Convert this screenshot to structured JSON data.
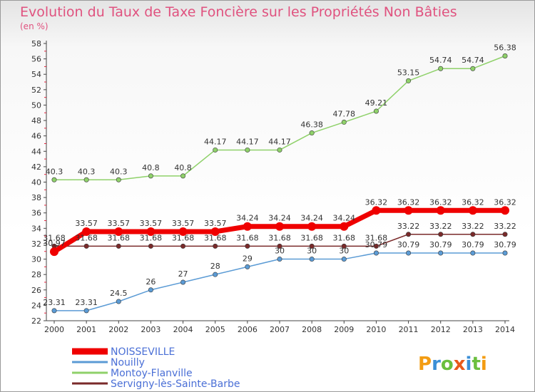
{
  "header": {
    "title": "Evolution du Taux de Taxe Foncière sur les Propriétés Non Bâties",
    "unit": "(en %)"
  },
  "logo": {
    "text": "Proxiti"
  },
  "chart_data": {
    "type": "line",
    "title": "Evolution du Taux de Taxe Foncière sur les Propriétés Non Bâties",
    "ylabel": "(en %)",
    "xlabel": "",
    "x": [
      "2000",
      "2001",
      "2002",
      "2003",
      "2004",
      "2005",
      "2006",
      "2007",
      "2008",
      "2009",
      "2010",
      "2011",
      "2012",
      "2013",
      "2014"
    ],
    "ylim": [
      22,
      58
    ],
    "yticks": [
      22,
      24,
      26,
      28,
      30,
      32,
      34,
      36,
      38,
      40,
      42,
      44,
      46,
      48,
      50,
      52,
      54,
      56,
      58
    ],
    "grid": false,
    "legend": "bottom-left",
    "series": [
      {
        "name": "NOISSEVILLE",
        "color": "#ef0000",
        "width": 7,
        "marker": 6,
        "values": [
          30.97,
          33.57,
          33.57,
          33.57,
          33.57,
          33.57,
          34.24,
          34.24,
          34.24,
          34.24,
          36.32,
          36.32,
          36.32,
          36.32,
          36.32
        ],
        "labels": [
          "30.97",
          "33.57",
          "33.57",
          "33.57",
          "33.57",
          "33.57",
          "34.24",
          "34.24",
          "34.24",
          "34.24",
          "36.32",
          "36.32",
          "36.32",
          "36.32",
          "36.32"
        ]
      },
      {
        "name": "Nouilly",
        "color": "#5b9bd5",
        "width": 1.5,
        "marker": 3.2,
        "values": [
          23.31,
          23.31,
          24.5,
          26,
          27,
          28,
          29,
          30,
          30,
          30,
          30.79,
          30.79,
          30.79,
          30.79,
          30.79
        ],
        "labels": [
          "23.31",
          "23.31",
          "24.5",
          "26",
          "27",
          "28",
          "29",
          "30",
          "30",
          "30",
          "30.79",
          "30.79",
          "30.79",
          "30.79",
          "30.79"
        ]
      },
      {
        "name": "Montoy-Flanville",
        "color": "#8fd16a",
        "width": 1.5,
        "marker": 3.2,
        "values": [
          40.3,
          40.3,
          40.3,
          40.8,
          40.8,
          44.17,
          44.17,
          44.17,
          46.38,
          47.78,
          49.21,
          53.15,
          54.74,
          54.74,
          56.38
        ],
        "labels": [
          "40.3",
          "40.3",
          "40.3",
          "40.8",
          "40.8",
          "44.17",
          "44.17",
          "44.17",
          "46.38",
          "47.78",
          "49.21",
          "53.15",
          "54.74",
          "54.74",
          "56.38"
        ]
      },
      {
        "name": "Servigny-lès-Sainte-Barbe",
        "color": "#7a2a2a",
        "width": 1.5,
        "marker": 3.2,
        "values": [
          31.68,
          31.68,
          31.68,
          31.68,
          31.68,
          31.68,
          31.68,
          31.68,
          31.68,
          31.68,
          31.68,
          33.22,
          33.22,
          33.22,
          33.22
        ],
        "labels": [
          "31.68",
          "31.68",
          "31.68",
          "31.68",
          "31.68",
          "31.68",
          "31.68",
          "31.68",
          "31.68",
          "31.68",
          "31.68",
          "33.22",
          "33.22",
          "33.22",
          "33.22"
        ]
      }
    ]
  }
}
